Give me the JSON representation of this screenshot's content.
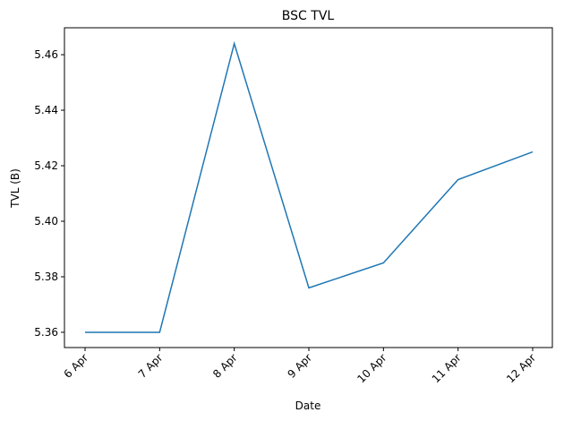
{
  "chart_data": {
    "type": "line",
    "title": "BSC TVL",
    "x_label": "Date",
    "y_label": "TVL (B)",
    "categories": [
      "6 Apr",
      "7 Apr",
      "8 Apr",
      "9 Apr",
      "10 Apr",
      "11 Apr",
      "12 Apr"
    ],
    "series": [
      {
        "name": "TVL",
        "color": "#1f77b4",
        "values": [
          5.36,
          5.36,
          5.464,
          5.376,
          5.385,
          5.415,
          5.425
        ]
      }
    ],
    "ylim": [
      5.3545,
      5.4697
    ],
    "yticks": [
      5.36,
      5.38,
      {
        "value": 5.4,
        "label": "5.40"
      },
      5.42,
      5.44,
      5.46
    ],
    "grid": false
  }
}
